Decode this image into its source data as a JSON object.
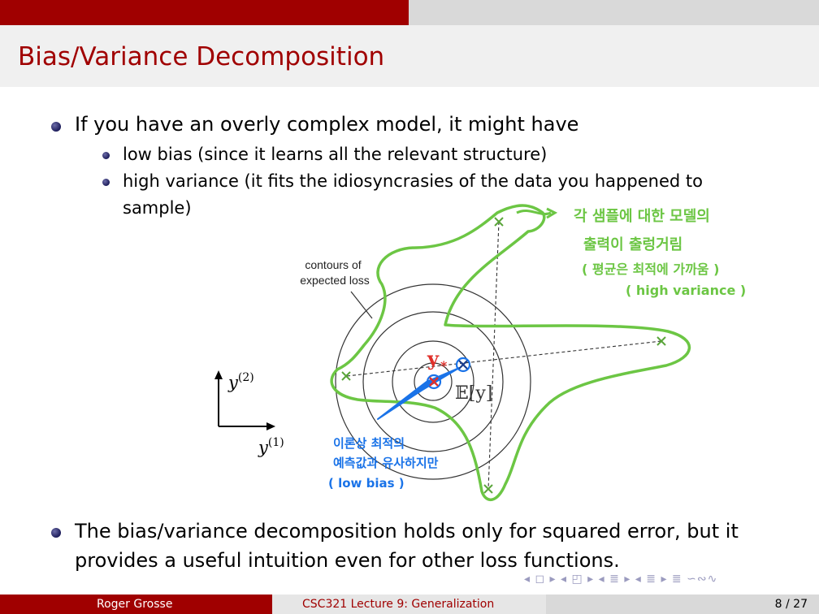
{
  "slide": {
    "title": "Bias/Variance Decomposition",
    "bullets": [
      "If you have an overly complex model, it might have",
      "The bias/variance decomposition holds only for squared error, but it",
      "provides a useful intuition even for other loss functions."
    ],
    "sub_bullets": [
      "low bias (since it learns all the relevant structure)",
      "high variance (it fits the idiosyncrasies of the data you happened to",
      "sample)"
    ]
  },
  "diagram": {
    "contour_label_line1": "contours of",
    "contour_label_line2": "expected loss",
    "axis_y2_base": "y",
    "axis_y2_sup": "(2)",
    "axis_y1_base": "y",
    "axis_y1_sup": "(1)",
    "ystar_label": "y",
    "ystar_sub": "*",
    "expectation_label": "𝔼[y]",
    "annotation_variance": [
      "각 샘플에 대한 모델의",
      "출력이 출렁거림",
      "( 평균은 최적에 가까움 )",
      "( high variance )"
    ],
    "annotation_bias": [
      "이론상 최적의",
      "예측값과 유사하지만",
      "( low bias )"
    ],
    "colors": {
      "green": "#6cc644",
      "blue": "#1a73e8",
      "red": "#e0302a",
      "accent": "#a00000"
    }
  },
  "footer": {
    "author": "Roger Grosse",
    "course": "CSC321 Lecture 9: Generalization",
    "page": "8 / 27"
  },
  "nav": {
    "symbols": "◂ ◻ ▸ ◂ ◰ ▸ ◂ ≣ ▸ ◂ ≣ ▸   ≣   ∽∾∿"
  }
}
